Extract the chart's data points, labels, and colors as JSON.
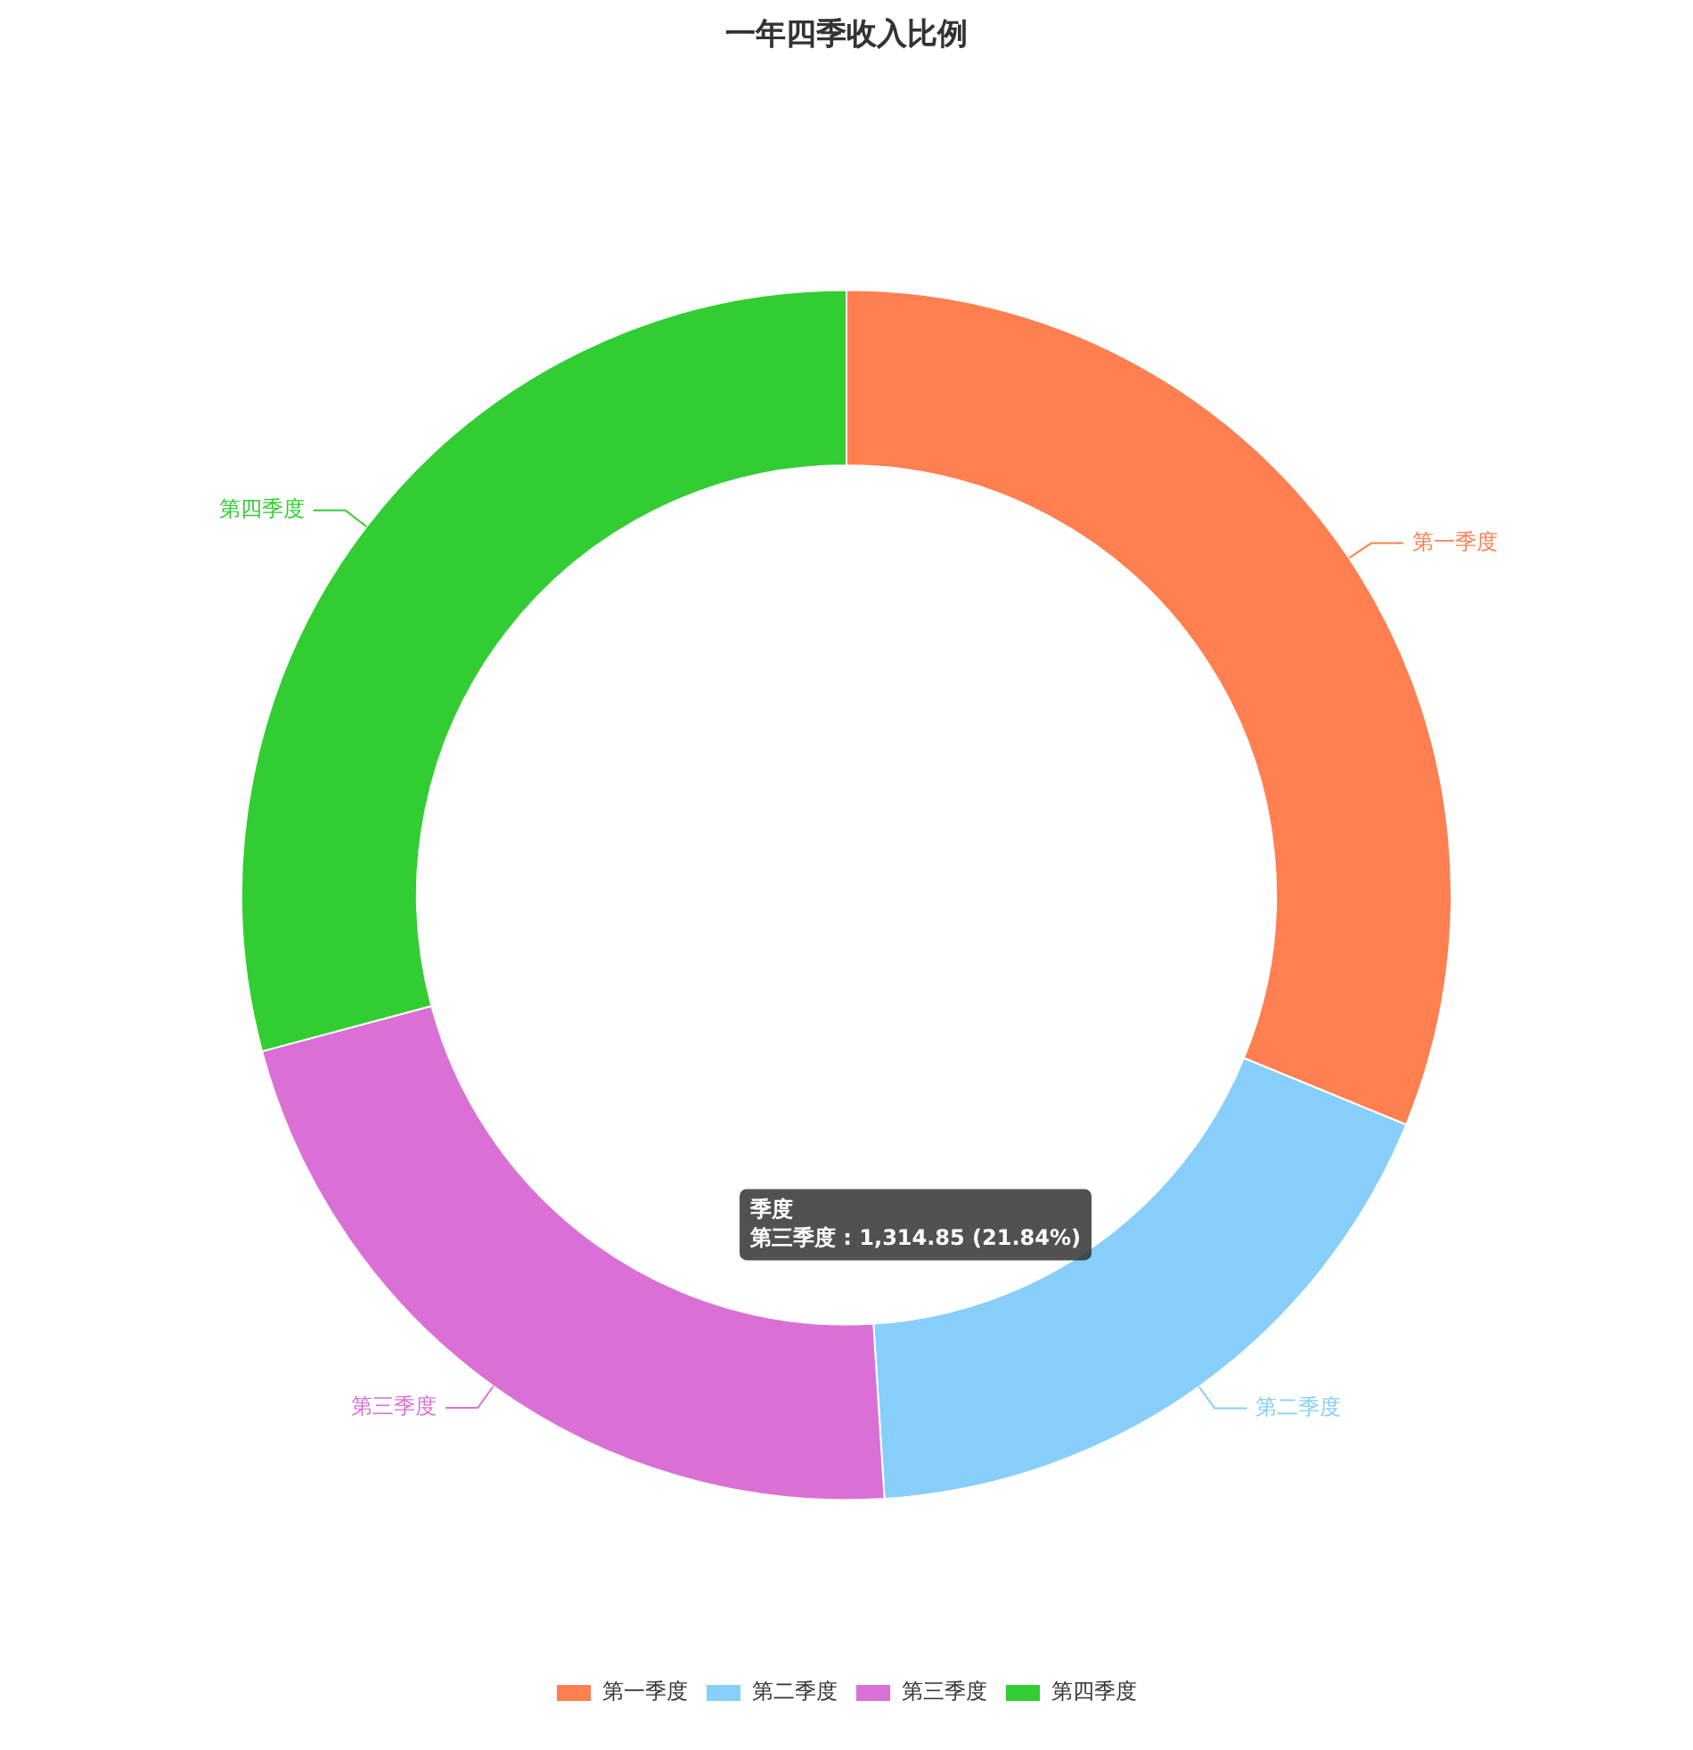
{
  "chart_data": {
    "type": "donut",
    "title": "一年四季收入比例",
    "categories": [
      "第一季度",
      "第二季度",
      "第三季度",
      "第四季度"
    ],
    "values": [
      31.2,
      17.8,
      21.84,
      29.16
    ],
    "colors": [
      "#ff7f50",
      "#87cefa",
      "#da70d6",
      "#32cd32"
    ],
    "legend": "bottom",
    "annotations": [
      "季度",
      "第三季度 : 1,314.85 (21.84%)"
    ]
  }
}
